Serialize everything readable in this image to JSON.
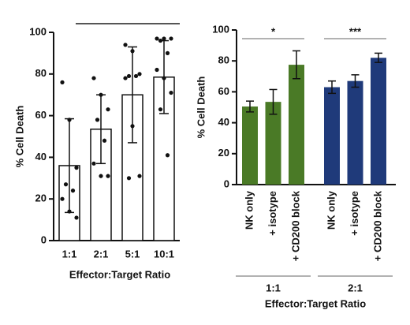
{
  "chart_data": [
    {
      "type": "bar_dots",
      "ylabel": "% Cell Death",
      "xlabel": "Effector:Target Ratio",
      "categories": [
        "1:1",
        "2:1",
        "5:1",
        "10:1"
      ],
      "values": [
        36,
        53.5,
        70,
        78.5
      ],
      "errors": [
        22.5,
        16.5,
        23,
        17.5
      ],
      "points": [
        [
          76,
          58,
          35,
          27,
          24,
          20,
          14,
          11
        ],
        [
          78,
          70,
          63,
          58,
          48,
          37,
          31,
          31
        ],
        [
          94,
          91,
          80,
          79,
          79,
          78,
          55,
          31,
          30
        ],
        [
          97,
          97,
          97,
          96,
          90,
          82,
          78,
          71,
          63,
          41
        ]
      ],
      "color": "#ffffff",
      "ylim": [
        0,
        100
      ],
      "yticks": [
        0,
        20,
        40,
        60,
        80,
        100
      ]
    },
    {
      "type": "grouped_bar",
      "ylabel": "% Cell Death",
      "xlabel": "Effector:Target Ratio",
      "groups": [
        {
          "name": "1:1",
          "color": "#4a7a26",
          "annotation": "*",
          "categories": [
            "NK only",
            "+ isotype",
            "+ CD200 block"
          ],
          "values": [
            50.5,
            53.5,
            77.5
          ],
          "errors": [
            3.5,
            8,
            9
          ]
        },
        {
          "name": "2:1",
          "color": "#1f3a7a",
          "annotation": "***",
          "categories": [
            "NK only",
            "+ isotype",
            "+ CD200 block"
          ],
          "values": [
            63,
            67,
            82
          ],
          "errors": [
            4,
            4,
            3
          ]
        }
      ],
      "ylim": [
        0,
        100
      ],
      "yticks": [
        0,
        20,
        40,
        60,
        80,
        100
      ]
    }
  ]
}
